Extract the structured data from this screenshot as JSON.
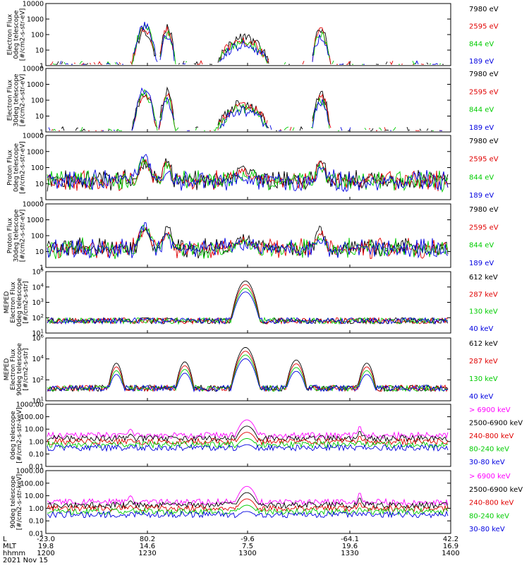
{
  "page": {
    "colors": {
      "black": "#000000",
      "red": "#e00000",
      "green": "#00cc00",
      "blue": "#0000e0",
      "magenta": "#ff00ff"
    }
  },
  "chart_data": [
    {
      "type": "line",
      "ylabel_lines": [
        "Electron Flux",
        "0deg telescope",
        "[#/cm2-s-str-eV]"
      ],
      "ylim": [
        1,
        10000
      ],
      "scale": "log",
      "yticks": [
        "1",
        "10",
        "100",
        "1000",
        "10000"
      ],
      "series": [
        {
          "name": "7980 eV",
          "color": "#000000"
        },
        {
          "name": "2595 eV",
          "color": "#e00000"
        },
        {
          "name": "844 eV",
          "color": "#00cc00"
        },
        {
          "name": "189 eV",
          "color": "#0000e0"
        }
      ]
    },
    {
      "type": "line",
      "ylabel_lines": [
        "Electron Flux",
        "30deg telescope",
        "[#/cm2-s-str-eV]"
      ],
      "ylim": [
        1,
        10000
      ],
      "scale": "log",
      "yticks": [
        "1",
        "10",
        "100",
        "1000",
        "10000"
      ],
      "series": [
        {
          "name": "7980 eV",
          "color": "#000000"
        },
        {
          "name": "2595 eV",
          "color": "#e00000"
        },
        {
          "name": "844 eV",
          "color": "#00cc00"
        },
        {
          "name": "189 eV",
          "color": "#0000e0"
        }
      ]
    },
    {
      "type": "line",
      "ylabel_lines": [
        "Proton Flux",
        "0deg telescope",
        "[#/cm2-s-str-eV]"
      ],
      "ylim": [
        1,
        10000
      ],
      "scale": "log",
      "yticks": [
        "1",
        "10",
        "100",
        "1000",
        "10000"
      ],
      "series": [
        {
          "name": "7980 eV",
          "color": "#000000"
        },
        {
          "name": "2595 eV",
          "color": "#e00000"
        },
        {
          "name": "844 eV",
          "color": "#00cc00"
        },
        {
          "name": "189 eV",
          "color": "#0000e0"
        }
      ]
    },
    {
      "type": "line",
      "ylabel_lines": [
        "Proton Flux",
        "30deg telescope",
        "[#/cm2-s-str-eV]"
      ],
      "ylim": [
        1,
        10000
      ],
      "scale": "log",
      "yticks": [
        "1",
        "10",
        "100",
        "1000",
        "10000"
      ],
      "series": [
        {
          "name": "7980 eV",
          "color": "#000000"
        },
        {
          "name": "2595 eV",
          "color": "#e00000"
        },
        {
          "name": "844 eV",
          "color": "#00cc00"
        },
        {
          "name": "189 eV",
          "color": "#0000e0"
        }
      ]
    },
    {
      "type": "line",
      "ylabel_lines": [
        "MEPED",
        "Electron Flux",
        "0deg telescope",
        "[#/cm2-s-str]"
      ],
      "ylim": [
        10,
        100000
      ],
      "scale": "log",
      "yticks": [
        "10^1",
        "10^2",
        "10^3",
        "10^4",
        "10^5"
      ],
      "series": [
        {
          "name": "612 keV",
          "color": "#000000"
        },
        {
          "name": "287 keV",
          "color": "#e00000"
        },
        {
          "name": "130 keV",
          "color": "#00cc00"
        },
        {
          "name": "40 keV",
          "color": "#0000e0"
        }
      ]
    },
    {
      "type": "line",
      "ylabel_lines": [
        "MEPED",
        "Electron Flux",
        "90deg telescope",
        "[#/cm2-s-str]"
      ],
      "ylim": [
        10,
        1000000
      ],
      "scale": "log",
      "yticks": [
        "10^1",
        "10^2",
        "10^4",
        "10^6"
      ],
      "series": [
        {
          "name": "612 keV",
          "color": "#000000"
        },
        {
          "name": "287 keV",
          "color": "#e00000"
        },
        {
          "name": "130 keV",
          "color": "#00cc00"
        },
        {
          "name": "40 keV",
          "color": "#0000e0"
        }
      ]
    },
    {
      "type": "line",
      "ylabel_lines": [
        "0deg telescope",
        "[#/cm2-s-str-keV]"
      ],
      "ylim": [
        0.01,
        1000
      ],
      "scale": "log",
      "yticks": [
        "0.01",
        "0.10",
        "1.00",
        "10.00",
        "100.00",
        "1000.00"
      ],
      "series": [
        {
          "name": "> 6900 keV",
          "color": "#ff00ff"
        },
        {
          "name": "2500-6900 keV",
          "color": "#000000"
        },
        {
          "name": "240-800 keV",
          "color": "#e00000"
        },
        {
          "name": "80-240 keV",
          "color": "#00cc00"
        },
        {
          "name": "30-80 keV",
          "color": "#0000e0"
        }
      ]
    },
    {
      "type": "line",
      "ylabel_lines": [
        "90deg telescope",
        "[#/cm2-s-str-keV]"
      ],
      "ylim": [
        0.01,
        1000
      ],
      "scale": "log",
      "yticks": [
        "0.01",
        "0.10",
        "1.00",
        "10.00",
        "100.00",
        "1000.00"
      ],
      "series": [
        {
          "name": "> 6900 keV",
          "color": "#ff00ff"
        },
        {
          "name": "2500-6900 keV",
          "color": "#000000"
        },
        {
          "name": "240-800 keV",
          "color": "#e00000"
        },
        {
          "name": "80-240 keV",
          "color": "#00cc00"
        },
        {
          "name": "30-80 keV",
          "color": "#0000e0"
        }
      ]
    }
  ],
  "x_axis": {
    "row_labels": [
      "L",
      "MLT",
      "hhmm"
    ],
    "columns": [
      {
        "L": "-23.0",
        "MLT": "19.8",
        "hhmm": "1200"
      },
      {
        "L": "80.2",
        "MLT": "14.6",
        "hhmm": "1230"
      },
      {
        "L": "-9.6",
        "MLT": "7.5",
        "hhmm": "1300"
      },
      {
        "L": "-64.1",
        "MLT": "19.6",
        "hhmm": "1330"
      },
      {
        "L": "42.2",
        "MLT": "16.9",
        "hhmm": "1400"
      }
    ],
    "date": "2021 Nov 15"
  }
}
